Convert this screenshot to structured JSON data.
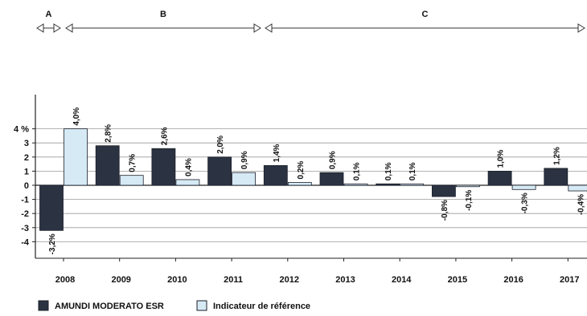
{
  "chart_data": {
    "type": "bar",
    "categories": [
      "2008",
      "2009",
      "2010",
      "2011",
      "2012",
      "2013",
      "2014",
      "2015",
      "2016",
      "2017"
    ],
    "series": [
      {
        "name": "AMUNDI MODERATO ESR",
        "color": "#2b3342",
        "values": [
          -3.2,
          2.8,
          2.6,
          2.0,
          1.4,
          0.9,
          0.1,
          -0.8,
          1.0,
          1.2
        ],
        "labels": [
          "-3,2%",
          "2,8%",
          "2,6%",
          "2,0%",
          "1,4%",
          "0,9%",
          "0,1%",
          "-0,8%",
          "1,0%",
          "1,2%"
        ]
      },
      {
        "name": "Indicateur de référence",
        "color": "#d6eaf6",
        "values": [
          4.0,
          0.7,
          0.4,
          0.9,
          0.2,
          0.1,
          0.1,
          -0.1,
          -0.3,
          -0.4
        ],
        "labels": [
          "4,0%",
          "0,7%",
          "0,4%",
          "0,9%",
          "0,2%",
          "0,1%",
          "0,1%",
          "-0,1%",
          "-0,3%",
          "-0,4%"
        ]
      }
    ],
    "ylim": [
      -4,
      4
    ],
    "yticks": [
      "4 %",
      "3",
      "2",
      "1",
      "0",
      "-1",
      "-2",
      "-3",
      "-4"
    ],
    "grid": true,
    "legend_position": "bottom-left",
    "periods": [
      {
        "label": "A",
        "from": "2008",
        "to": "2008"
      },
      {
        "label": "B",
        "from": "2009",
        "to": "2011"
      },
      {
        "label": "C",
        "from": "2012",
        "to": "2017"
      }
    ]
  }
}
